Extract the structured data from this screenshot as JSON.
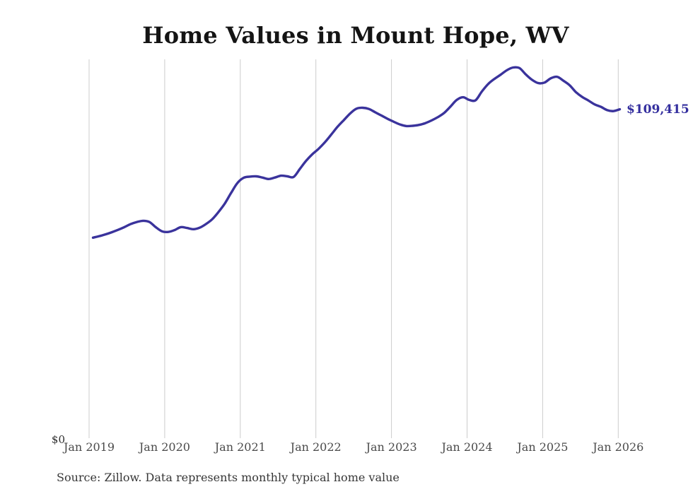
{
  "title": "Home Values in Mount Hope, WV",
  "source_note": "Source: Zillow. Data represents monthly typical home value",
  "end_label": "$109,415",
  "y_axis": {
    "zero_label": "$0"
  },
  "x_axis": {
    "ticks": [
      "Jan 2019",
      "Jan 2020",
      "Jan 2021",
      "Jan 2022",
      "Jan 2023",
      "Jan 2024",
      "Jan 2025",
      "Jan 2026"
    ]
  },
  "colors": {
    "line": "#3a339c",
    "value_label": "#332e9e",
    "grid": "#cccccc",
    "title": "#141414",
    "axis_text": "#4a4a4a",
    "source_text": "#373737",
    "background": "#ffffff"
  },
  "chart_data": {
    "type": "line",
    "title": "Home Values in Mount Hope, WV",
    "xlabel": "",
    "ylabel": "",
    "ylim": [
      0,
      126000
    ],
    "grid": "vertical-only",
    "legend": false,
    "frequency": "monthly",
    "latest_value": 109415,
    "latest_value_label": "$109,415",
    "x": [
      "2019-01",
      "2019-02",
      "2019-03",
      "2019-04",
      "2019-05",
      "2019-06",
      "2019-07",
      "2019-08",
      "2019-09",
      "2019-10",
      "2019-11",
      "2019-12",
      "2020-01",
      "2020-02",
      "2020-03",
      "2020-04",
      "2020-05",
      "2020-06",
      "2020-07",
      "2020-08",
      "2020-09",
      "2020-10",
      "2020-11",
      "2020-12",
      "2021-01",
      "2021-02",
      "2021-03",
      "2021-04",
      "2021-05",
      "2021-06",
      "2021-07",
      "2021-08",
      "2021-09",
      "2021-10",
      "2021-11",
      "2021-12",
      "2022-01",
      "2022-02",
      "2022-03",
      "2022-04",
      "2022-05",
      "2022-06",
      "2022-07",
      "2022-08",
      "2022-09",
      "2022-10",
      "2022-11",
      "2022-12",
      "2023-01",
      "2023-02",
      "2023-03",
      "2023-04",
      "2023-05",
      "2023-06",
      "2023-07",
      "2023-08",
      "2023-09",
      "2023-10",
      "2023-11",
      "2023-12",
      "2024-01",
      "2024-02",
      "2024-03",
      "2024-04",
      "2024-05",
      "2024-06",
      "2024-07",
      "2024-08",
      "2024-09",
      "2024-10",
      "2024-11",
      "2024-12",
      "2025-01",
      "2025-02",
      "2025-03",
      "2025-04",
      "2025-05",
      "2025-06",
      "2025-07",
      "2025-08",
      "2025-09",
      "2025-10",
      "2025-11",
      "2025-12",
      "2026-01"
    ],
    "series": [
      {
        "name": "Typical home value (USD)",
        "values": [
          66700,
          67200,
          67800,
          68500,
          69300,
          70200,
          71200,
          71900,
          72300,
          71900,
          70200,
          68800,
          68600,
          69200,
          70200,
          69900,
          69500,
          70000,
          71200,
          72800,
          75200,
          78000,
          81500,
          84800,
          86600,
          87000,
          87100,
          86700,
          86200,
          86700,
          87300,
          87100,
          86900,
          89600,
          92300,
          94500,
          96300,
          98500,
          101000,
          103600,
          105800,
          108000,
          109600,
          109900,
          109500,
          108400,
          107300,
          106200,
          105200,
          104300,
          103800,
          103900,
          104200,
          104800,
          105700,
          106800,
          108200,
          110300,
          112500,
          113400,
          112500,
          112400,
          115300,
          117800,
          119500,
          120900,
          122400,
          123300,
          123100,
          121000,
          119200,
          118100,
          118300,
          119700,
          120200,
          118900,
          117400,
          115100,
          113500,
          112300,
          111000,
          110200,
          109100,
          108800,
          109415
        ]
      }
    ]
  }
}
